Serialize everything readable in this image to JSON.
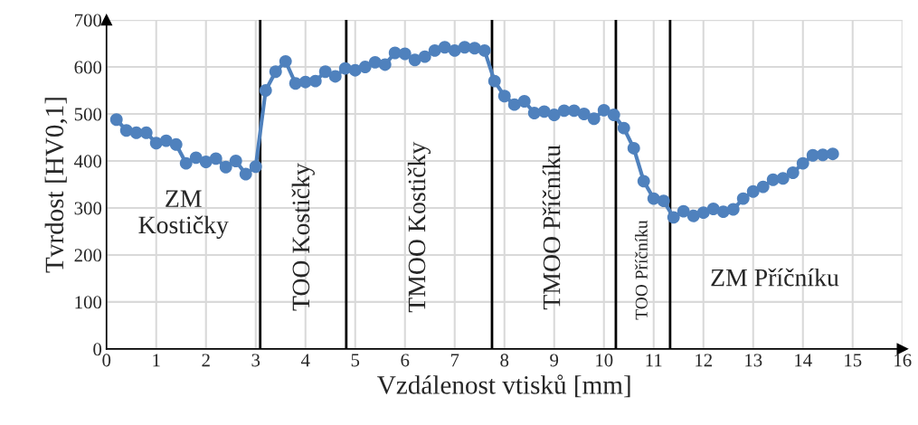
{
  "chart_data": {
    "type": "line",
    "xlabel": "Vzdálenost vtisků [mm]",
    "ylabel": "Tvrdost [HV0,1]",
    "x": [
      0.2,
      0.4,
      0.6,
      0.8,
      1.0,
      1.2,
      1.4,
      1.6,
      1.8,
      2.0,
      2.2,
      2.4,
      2.6,
      2.8,
      3.0,
      3.2,
      3.4,
      3.6,
      3.8,
      4.0,
      4.2,
      4.4,
      4.6,
      4.8,
      5.0,
      5.2,
      5.4,
      5.6,
      5.8,
      6.0,
      6.2,
      6.4,
      6.6,
      6.8,
      7.0,
      7.2,
      7.4,
      7.6,
      7.8,
      8.0,
      8.2,
      8.4,
      8.6,
      8.8,
      9.0,
      9.2,
      9.4,
      9.6,
      9.8,
      10.0,
      10.2,
      10.4,
      10.6,
      10.8,
      11.0,
      11.2,
      11.4,
      11.6,
      11.8,
      12.0,
      12.2,
      12.4,
      12.6,
      12.8,
      13.0,
      13.2,
      13.4,
      13.6,
      13.8,
      14.0,
      14.2,
      14.4,
      14.6
    ],
    "series": [
      {
        "color": "#4f81bd",
        "values": [
          488,
          465,
          460,
          460,
          438,
          443,
          435,
          395,
          407,
          398,
          405,
          387,
          400,
          372,
          388,
          550,
          590,
          612,
          565,
          568,
          570,
          590,
          580,
          597,
          593,
          600,
          610,
          605,
          630,
          628,
          615,
          622,
          635,
          642,
          635,
          642,
          640,
          635,
          570,
          538,
          520,
          527,
          502,
          505,
          498,
          507,
          507,
          500,
          490,
          508,
          498,
          470,
          427,
          357,
          320,
          315,
          280,
          293,
          283,
          290,
          298,
          292,
          297,
          320,
          335,
          345,
          360,
          363,
          375,
          395,
          412,
          413,
          415
        ]
      }
    ],
    "xlim": [
      0,
      16
    ],
    "xticks": [
      0,
      1,
      2,
      3,
      4,
      5,
      6,
      7,
      8,
      9,
      10,
      11,
      12,
      13,
      14,
      15,
      16
    ],
    "ylim": [
      0,
      700
    ],
    "yticks": [
      0,
      100,
      200,
      300,
      400,
      500,
      600,
      700
    ],
    "grid": true,
    "marker": "circle",
    "line_style": "solid",
    "ref_lines": [
      {
        "axis": "x",
        "value": 3.09,
        "color": "#000000"
      },
      {
        "axis": "x",
        "value": 4.82,
        "color": "#000000"
      },
      {
        "axis": "x",
        "value": 7.75,
        "color": "#000000"
      },
      {
        "axis": "x",
        "value": 10.24,
        "color": "#000000"
      },
      {
        "axis": "x",
        "value": 11.33,
        "color": "#000000"
      }
    ],
    "annotations": [
      "ZM\nKostičky",
      "TOO Kostičky",
      "TMOO Kostičky",
      "TMOO Příčníku",
      "TOO Příčníku",
      "ZM Příčníku"
    ]
  }
}
